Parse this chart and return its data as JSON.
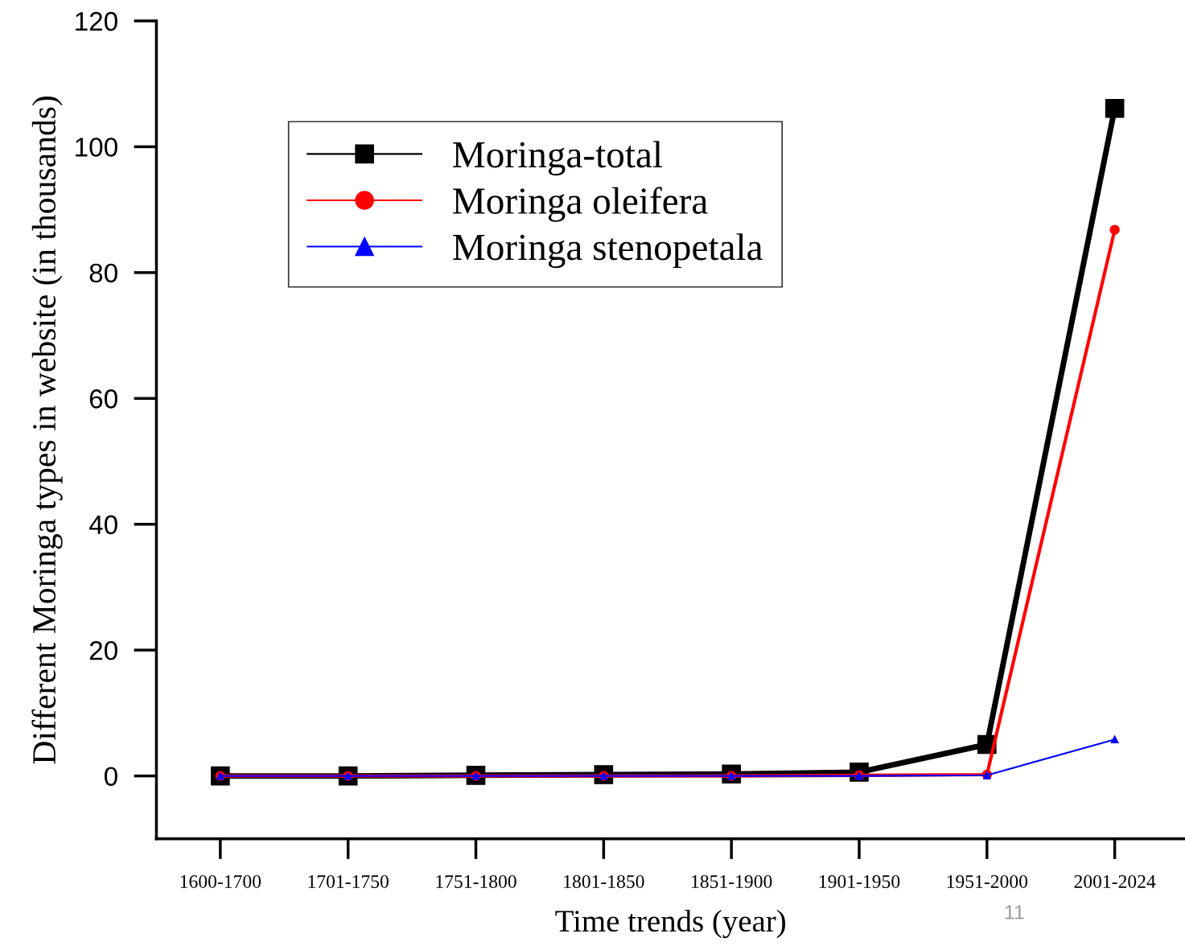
{
  "chart_data": {
    "type": "line",
    "xlabel": "Time trends (year)",
    "ylabel": "Different Moringa types in website (in thousands)",
    "categories": [
      "1600-1700",
      "1701-1750",
      "1751-1800",
      "1801-1850",
      "1851-1900",
      "1901-1950",
      "1951-2000",
      "2001-2024"
    ],
    "series": [
      {
        "name": "Moringa-total",
        "color": "#000000",
        "marker": "square",
        "values": [
          0.0,
          0.0,
          0.1,
          0.2,
          0.3,
          0.6,
          5.0,
          106.1
        ]
      },
      {
        "name": "Moringa oleifera",
        "color": "#ff0000",
        "marker": "circle",
        "values": [
          0.0,
          0.0,
          0.0,
          0.0,
          0.0,
          0.1,
          0.2,
          86.8
        ]
      },
      {
        "name": "Moringa stenopetala",
        "color": "#0000ff",
        "marker": "triangle",
        "values": [
          0.0,
          0.0,
          0.0,
          0.0,
          0.0,
          0.0,
          0.1,
          5.8
        ]
      }
    ],
    "ylim": [
      -10,
      120
    ],
    "yticks": [
      0,
      20,
      40,
      60,
      80,
      100,
      120
    ],
    "grid": false,
    "legend": "top left",
    "line_style": "solid",
    "annotations": [
      "11"
    ]
  }
}
